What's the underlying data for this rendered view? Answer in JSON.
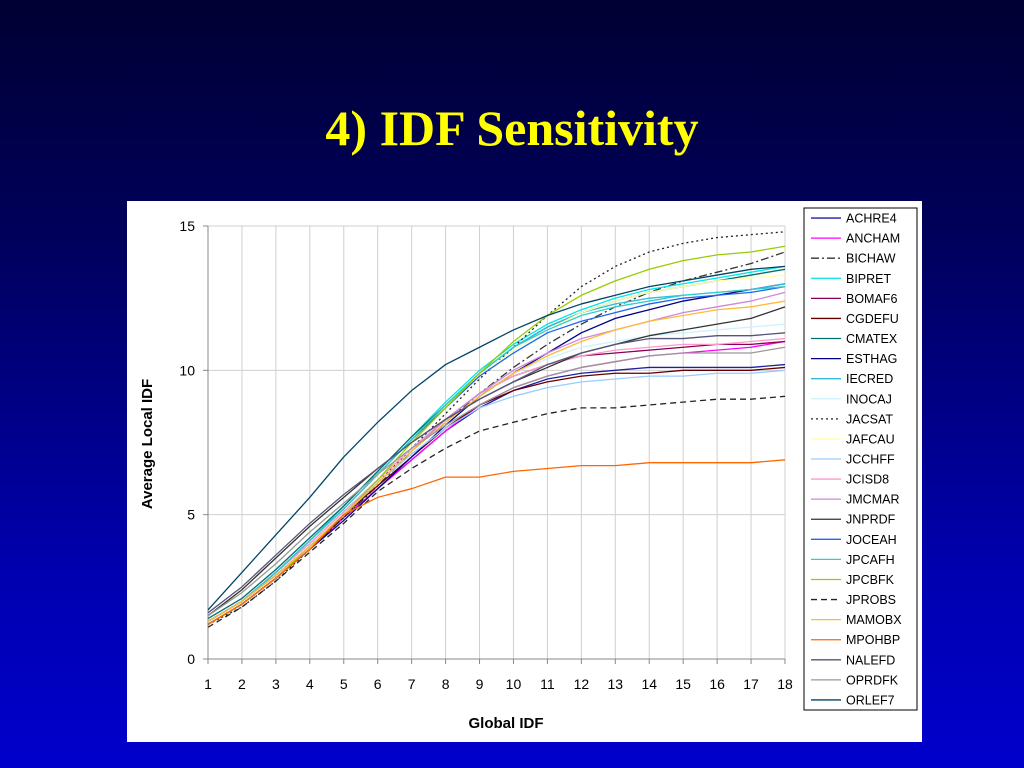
{
  "slide": {
    "title": "4) IDF Sensitivity"
  },
  "chart_data": {
    "type": "line",
    "title": "",
    "xlabel": "Global IDF",
    "ylabel": "Average Local IDF",
    "categories": [
      1,
      2,
      3,
      4,
      5,
      6,
      7,
      8,
      9,
      10,
      11,
      12,
      13,
      14,
      15,
      16,
      17,
      18
    ],
    "xlim": [
      1,
      18
    ],
    "ylim": [
      0,
      15
    ],
    "yticks": [
      0,
      5,
      10,
      15
    ],
    "grid": true,
    "legend_position": "right",
    "series": [
      {
        "name": "ACHRE4",
        "color": "#1f1fa0",
        "dash": "solid",
        "values": [
          1.3,
          2.0,
          2.9,
          3.9,
          4.9,
          5.9,
          6.9,
          7.9,
          8.7,
          9.3,
          9.7,
          9.9,
          10.0,
          10.1,
          10.1,
          10.1,
          10.1,
          10.2
        ]
      },
      {
        "name": "ANCHAM",
        "color": "#ff00ff",
        "dash": "solid",
        "values": [
          1.2,
          1.9,
          2.8,
          3.8,
          4.9,
          5.9,
          6.9,
          7.9,
          8.8,
          9.4,
          9.8,
          10.1,
          10.3,
          10.5,
          10.6,
          10.7,
          10.8,
          11.0
        ]
      },
      {
        "name": "BICHAW",
        "color": "#333333",
        "dash": "dashdot",
        "values": [
          1.2,
          1.9,
          2.8,
          3.8,
          4.9,
          6.0,
          7.2,
          8.2,
          9.2,
          10.1,
          10.9,
          11.6,
          12.2,
          12.7,
          13.1,
          13.4,
          13.7,
          14.1
        ]
      },
      {
        "name": "BIPRET",
        "color": "#00e5e5",
        "dash": "solid",
        "values": [
          1.3,
          2.0,
          3.0,
          4.1,
          5.3,
          6.5,
          7.7,
          8.9,
          10.0,
          10.9,
          11.6,
          12.1,
          12.5,
          12.8,
          13.0,
          13.2,
          13.4,
          13.6
        ]
      },
      {
        "name": "BOMAF6",
        "color": "#880055",
        "dash": "solid",
        "values": [
          1.3,
          2.0,
          3.0,
          4.0,
          5.1,
          6.2,
          7.3,
          8.3,
          9.2,
          9.8,
          10.2,
          10.5,
          10.6,
          10.7,
          10.8,
          10.9,
          10.9,
          11.0
        ]
      },
      {
        "name": "CGDEFU",
        "color": "#660000",
        "dash": "solid",
        "values": [
          1.3,
          2.0,
          2.9,
          3.9,
          5.0,
          6.0,
          7.0,
          8.0,
          8.8,
          9.3,
          9.6,
          9.8,
          9.9,
          9.9,
          10.0,
          10.0,
          10.0,
          10.1
        ]
      },
      {
        "name": "CMATEX",
        "color": "#007070",
        "dash": "solid",
        "values": [
          1.4,
          2.1,
          3.1,
          4.2,
          5.3,
          6.5,
          7.7,
          8.8,
          9.9,
          10.8,
          11.5,
          12.0,
          12.4,
          12.7,
          12.9,
          13.1,
          13.3,
          13.5
        ]
      },
      {
        "name": "ESTHAG",
        "color": "#00008b",
        "dash": "solid",
        "values": [
          1.2,
          1.9,
          2.8,
          3.8,
          4.8,
          5.9,
          7.0,
          8.1,
          9.1,
          9.9,
          10.6,
          11.3,
          11.8,
          12.1,
          12.4,
          12.6,
          12.8,
          13.0
        ]
      },
      {
        "name": "IECRED",
        "color": "#33bbdd",
        "dash": "solid",
        "values": [
          1.3,
          2.0,
          3.0,
          4.1,
          5.2,
          6.4,
          7.6,
          8.8,
          9.9,
          10.8,
          11.5,
          12.0,
          12.3,
          12.5,
          12.6,
          12.7,
          12.8,
          13.0
        ]
      },
      {
        "name": "INOCAJ",
        "color": "#ccf2ff",
        "dash": "solid",
        "values": [
          1.3,
          2.0,
          3.0,
          4.0,
          5.1,
          6.2,
          7.3,
          8.3,
          9.2,
          9.9,
          10.4,
          10.8,
          11.0,
          11.2,
          11.3,
          11.4,
          11.5,
          11.6
        ]
      },
      {
        "name": "JACSAT",
        "color": "#222222",
        "dash": "dot",
        "values": [
          1.2,
          1.8,
          2.7,
          3.8,
          4.9,
          6.1,
          7.3,
          8.5,
          9.7,
          10.8,
          11.9,
          12.9,
          13.6,
          14.1,
          14.4,
          14.6,
          14.7,
          14.8
        ]
      },
      {
        "name": "JAFCAU",
        "color": "#ffffaa",
        "dash": "solid",
        "values": [
          1.3,
          2.0,
          3.0,
          4.1,
          5.2,
          6.4,
          7.6,
          8.7,
          9.8,
          10.7,
          11.4,
          12.0,
          12.4,
          12.7,
          12.9,
          13.1,
          13.2,
          13.3
        ]
      },
      {
        "name": "JCCHFF",
        "color": "#99ccff",
        "dash": "solid",
        "values": [
          1.3,
          2.0,
          2.9,
          3.9,
          5.0,
          6.1,
          7.1,
          8.0,
          8.7,
          9.1,
          9.4,
          9.6,
          9.7,
          9.8,
          9.8,
          9.9,
          9.9,
          10.0
        ]
      },
      {
        "name": "JCISD8",
        "color": "#ff99cc",
        "dash": "solid",
        "values": [
          1.3,
          2.0,
          3.0,
          4.0,
          5.1,
          6.2,
          7.3,
          8.3,
          9.2,
          9.8,
          10.2,
          10.5,
          10.7,
          10.8,
          10.9,
          10.9,
          11.0,
          11.1
        ]
      },
      {
        "name": "JMCMAR",
        "color": "#cc88dd",
        "dash": "solid",
        "values": [
          1.3,
          2.0,
          2.9,
          3.9,
          5.0,
          6.1,
          7.2,
          8.3,
          9.2,
          10.0,
          10.6,
          11.1,
          11.4,
          11.7,
          12.0,
          12.2,
          12.4,
          12.7
        ]
      },
      {
        "name": "JNPRDF",
        "color": "#333333",
        "dash": "solid",
        "values": [
          1.5,
          2.4,
          3.5,
          4.6,
          5.6,
          6.6,
          7.5,
          8.3,
          9.0,
          9.6,
          10.1,
          10.6,
          10.9,
          11.2,
          11.4,
          11.6,
          11.8,
          12.2
        ]
      },
      {
        "name": "JOCEAH",
        "color": "#1e66ee",
        "dash": "solid",
        "values": [
          1.3,
          2.0,
          3.0,
          4.1,
          5.2,
          6.4,
          7.6,
          8.7,
          9.8,
          10.6,
          11.3,
          11.7,
          12.0,
          12.3,
          12.5,
          12.6,
          12.7,
          12.9
        ]
      },
      {
        "name": "JPCAFH",
        "color": "#33cccc",
        "dash": "solid",
        "values": [
          1.3,
          2.0,
          3.0,
          4.1,
          5.2,
          6.4,
          7.6,
          8.8,
          9.9,
          10.8,
          11.4,
          11.9,
          12.2,
          12.4,
          12.6,
          12.7,
          12.8,
          12.9
        ]
      },
      {
        "name": "JPCBFK",
        "color": "#99cc00",
        "dash": "solid",
        "values": [
          1.2,
          1.9,
          2.8,
          3.9,
          5.0,
          6.2,
          7.5,
          8.7,
          9.9,
          11.0,
          11.9,
          12.6,
          13.1,
          13.5,
          13.8,
          14.0,
          14.1,
          14.3
        ]
      },
      {
        "name": "JPROBS",
        "color": "#222222",
        "dash": "dash",
        "values": [
          1.1,
          1.8,
          2.7,
          3.7,
          4.7,
          5.8,
          6.6,
          7.3,
          7.9,
          8.2,
          8.5,
          8.7,
          8.7,
          8.8,
          8.9,
          9.0,
          9.0,
          9.1
        ]
      },
      {
        "name": "MAMOBX",
        "color": "#ffbb33",
        "dash": "solid",
        "values": [
          1.3,
          2.0,
          2.9,
          3.9,
          5.0,
          6.1,
          7.2,
          8.2,
          9.1,
          9.9,
          10.5,
          11.0,
          11.4,
          11.7,
          11.9,
          12.1,
          12.2,
          12.4
        ]
      },
      {
        "name": "MPOHBP",
        "color": "#ff6600",
        "dash": "solid",
        "values": [
          1.2,
          1.9,
          2.8,
          3.8,
          5.0,
          5.6,
          5.9,
          6.3,
          6.3,
          6.5,
          6.6,
          6.7,
          6.7,
          6.8,
          6.8,
          6.8,
          6.8,
          6.9
        ]
      },
      {
        "name": "NALEFD",
        "color": "#555577",
        "dash": "solid",
        "values": [
          1.6,
          2.5,
          3.6,
          4.7,
          5.7,
          6.6,
          7.5,
          8.3,
          9.0,
          9.6,
          10.2,
          10.6,
          10.9,
          11.1,
          11.1,
          11.2,
          11.2,
          11.3
        ]
      },
      {
        "name": "OPRDFK",
        "color": "#999999",
        "dash": "solid",
        "values": [
          1.5,
          2.3,
          3.3,
          4.4,
          5.4,
          6.4,
          7.3,
          8.1,
          8.8,
          9.4,
          9.8,
          10.1,
          10.3,
          10.5,
          10.6,
          10.6,
          10.6,
          10.8
        ]
      },
      {
        "name": "ORLEF7",
        "color": "#004466",
        "dash": "solid",
        "values": [
          1.7,
          3.0,
          4.3,
          5.6,
          7.0,
          8.2,
          9.3,
          10.2,
          10.8,
          11.4,
          11.9,
          12.3,
          12.6,
          12.9,
          13.1,
          13.3,
          13.5,
          13.6
        ]
      }
    ]
  }
}
